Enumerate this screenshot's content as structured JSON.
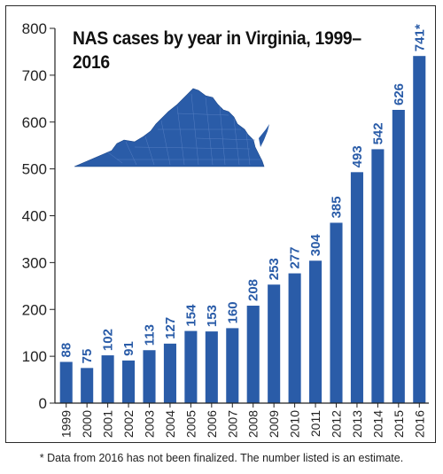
{
  "chart_data": {
    "type": "bar",
    "title": "NAS cases by year in Virginia, 1999–2016",
    "categories": [
      "1999",
      "2000",
      "2001",
      "2002",
      "2003",
      "2004",
      "2005",
      "2006",
      "2007",
      "2008",
      "2009",
      "2010",
      "2011",
      "2012",
      "2013",
      "2014",
      "2015",
      "2016"
    ],
    "values": [
      88,
      75,
      102,
      91,
      113,
      127,
      154,
      153,
      160,
      208,
      253,
      277,
      304,
      385,
      493,
      542,
      626,
      741
    ],
    "data_labels": [
      "88",
      "75",
      "102",
      "91",
      "113",
      "127",
      "154",
      "153",
      "160",
      "208",
      "253",
      "277",
      "304",
      "385",
      "493",
      "542",
      "626",
      "741*"
    ],
    "xlabel": "",
    "ylabel": "",
    "ylim": [
      0,
      800
    ],
    "yticks": [
      0,
      100,
      200,
      300,
      400,
      500,
      600,
      700,
      800
    ],
    "grid": false,
    "bar_color": "#2a5ca8",
    "label_color": "#2a5ca8",
    "footnote": "* Data from 2016 has not been finalized. The number listed is an estimate.",
    "inset_map": "virginia-map"
  }
}
